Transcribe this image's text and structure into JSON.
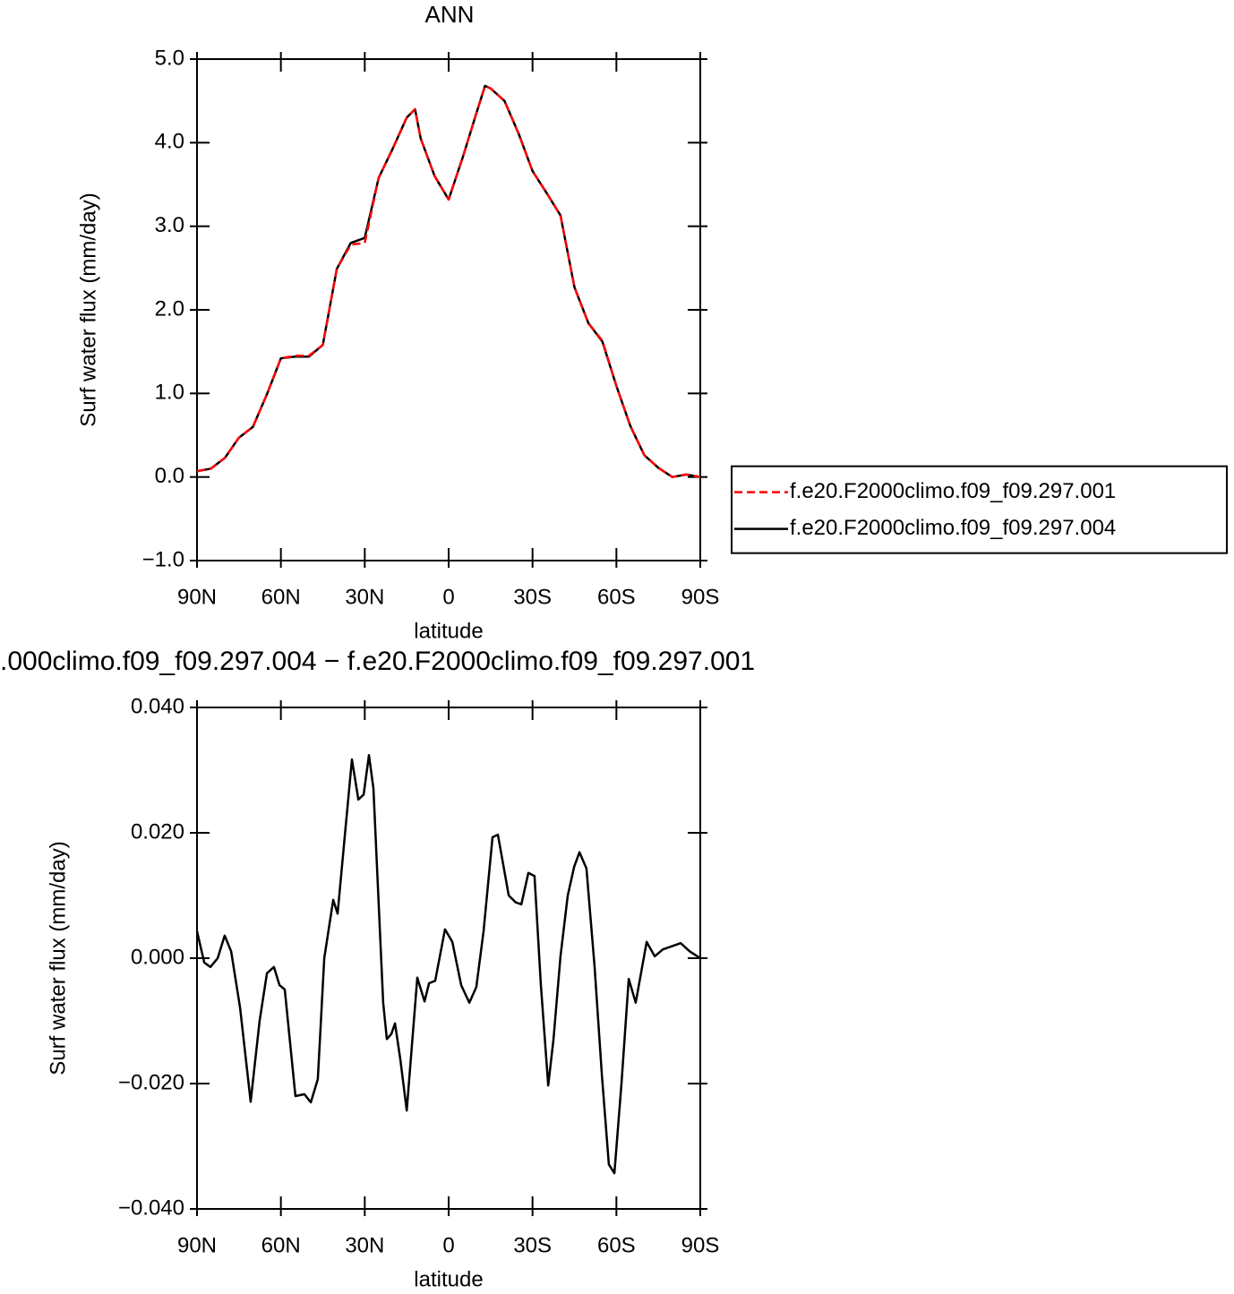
{
  "chart_data": [
    {
      "type": "line",
      "title": "ANN",
      "xlabel": "latitude",
      "ylabel": "Surf water flux (mm/day)",
      "xlim": [
        90,
        -90
      ],
      "xticks": [
        {
          "value": 90,
          "label": "90N"
        },
        {
          "value": 60,
          "label": "60N"
        },
        {
          "value": 30,
          "label": "30N"
        },
        0,
        {
          "value": -30,
          "label": "30S"
        },
        {
          "value": -60,
          "label": "60S"
        },
        {
          "value": -90,
          "label": "90S"
        }
      ],
      "ylim": [
        -1,
        5
      ],
      "yticks": [
        {
          "value": -1,
          "label": "−1.0"
        },
        {
          "value": 0,
          "label": "0.0"
        },
        {
          "value": 1,
          "label": "1.0"
        },
        {
          "value": 2,
          "label": "2.0"
        },
        {
          "value": 3,
          "label": "3.0"
        },
        {
          "value": 4,
          "label": "4.0"
        },
        {
          "value": 5,
          "label": "5.0"
        }
      ],
      "legend": "right",
      "x": [
        90,
        85,
        80,
        75,
        70,
        65,
        60,
        55,
        50,
        45,
        40,
        35,
        30,
        25,
        20,
        15,
        12,
        10,
        5,
        0,
        -5,
        -10,
        -13,
        -15,
        -20,
        -25,
        -30,
        -35,
        -40,
        -45,
        -50,
        -55,
        -60,
        -65,
        -70,
        -75,
        -80,
        -85,
        -90
      ],
      "series": [
        {
          "name": "f.e20.F2000climo.f09_f09.297.001",
          "color": "#ff0000",
          "linestyle": "dashed",
          "values": [
            0.07,
            0.1,
            0.23,
            0.47,
            0.6,
            0.99,
            1.42,
            1.45,
            1.45,
            1.58,
            2.49,
            2.78,
            2.8,
            3.58,
            3.93,
            4.3,
            4.4,
            4.05,
            3.6,
            3.32,
            3.82,
            4.36,
            4.68,
            4.65,
            4.5,
            4.11,
            3.66,
            3.4,
            3.13,
            2.27,
            1.84,
            1.63,
            1.09,
            0.61,
            0.26,
            0.11,
            0.0,
            0.03,
            0.0
          ]
        },
        {
          "name": "f.e20.F2000climo.f09_f09.297.004",
          "color": "#000000",
          "linestyle": "solid",
          "values": [
            0.07,
            0.1,
            0.23,
            0.47,
            0.6,
            0.99,
            1.42,
            1.44,
            1.44,
            1.58,
            2.49,
            2.8,
            2.86,
            3.58,
            3.93,
            4.3,
            4.4,
            4.05,
            3.6,
            3.32,
            3.82,
            4.36,
            4.68,
            4.65,
            4.5,
            4.11,
            3.66,
            3.4,
            3.13,
            2.27,
            1.84,
            1.62,
            1.09,
            0.61,
            0.26,
            0.11,
            0.0,
            0.03,
            0.0
          ]
        }
      ]
    },
    {
      "type": "line",
      "title": ".000climo.f09_f09.297.004 − f.e20.F2000climo.f09_f09.297.001",
      "xlabel": "latitude",
      "ylabel": "Surf water flux (mm/day)",
      "xlim": [
        90,
        -90
      ],
      "xticks": [
        {
          "value": 90,
          "label": "90N"
        },
        {
          "value": 60,
          "label": "60N"
        },
        {
          "value": 30,
          "label": "30N"
        },
        0,
        {
          "value": -30,
          "label": "30S"
        },
        {
          "value": -60,
          "label": "60S"
        },
        {
          "value": -90,
          "label": "90S"
        }
      ],
      "ylim": [
        -0.04,
        0.04
      ],
      "yticks": [
        {
          "value": -0.04,
          "label": "−0.040"
        },
        {
          "value": -0.02,
          "label": "−0.020"
        },
        {
          "value": 0,
          "label": "0.000"
        },
        {
          "value": 0.02,
          "label": "0.020"
        },
        {
          "value": 0.04,
          "label": "0.040"
        }
      ],
      "x": [
        90,
        87.4,
        85.2,
        82.6,
        80.1,
        77.8,
        74.6,
        70.8,
        67.6,
        65,
        62.5,
        60.5,
        58.6,
        54.8,
        51.6,
        49.3,
        46.8,
        44.5,
        41.3,
        39.7,
        37.2,
        34.6,
        32.3,
        30.4,
        28.5,
        26.9,
        23.4,
        22.1,
        20.5,
        19.2,
        17.3,
        15,
        11.2,
        8.6,
        7,
        4.8,
        1.3,
        -1.3,
        -4.5,
        -7.4,
        -9.9,
        -12.5,
        -15.7,
        -17.6,
        -21.5,
        -24,
        -26,
        -28.5,
        -30.7,
        -33,
        -35.6,
        -37.5,
        -40,
        -42.6,
        -44.9,
        -46.8,
        -49.3,
        -52.2,
        -54.8,
        -57.3,
        -59.3,
        -61.8,
        -64.4,
        -66.9,
        -70.8,
        -73.7,
        -76.6,
        -79.8,
        -83,
        -86.2,
        -90
      ],
      "series": [
        {
          "color": "#000000",
          "values": [
            0.0043,
            -0.0007,
            -0.0014,
            0,
            0.0036,
            0.0011,
            -0.0079,
            -0.0229,
            -0.01,
            -0.0024,
            -0.0014,
            -0.0043,
            -0.005,
            -0.022,
            -0.0217,
            -0.023,
            -0.0193,
            0,
            0.0093,
            0.0071,
            0.0193,
            0.0317,
            0.0253,
            0.0261,
            0.0324,
            0.0271,
            -0.0071,
            -0.0129,
            -0.0121,
            -0.0104,
            -0.0161,
            -0.0243,
            -0.0031,
            -0.0069,
            -0.004,
            -0.0036,
            0.0046,
            0.0026,
            -0.0043,
            -0.0071,
            -0.0046,
            0.0043,
            0.0193,
            0.0197,
            0.01,
            0.0089,
            0.0086,
            0.0136,
            0.0131,
            -0.0043,
            -0.0203,
            -0.0129,
            0.0003,
            0.01,
            0.0146,
            0.0169,
            0.0143,
            -0.0014,
            -0.0186,
            -0.0329,
            -0.0343,
            -0.02,
            -0.0033,
            -0.0071,
            0.0026,
            0.0003,
            0.0014,
            0.0019,
            0.0024,
            0.0011,
            0
          ]
        }
      ]
    }
  ]
}
